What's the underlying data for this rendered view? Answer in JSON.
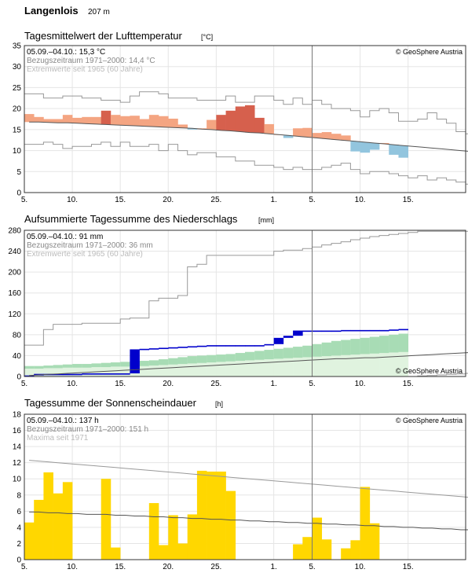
{
  "header": {
    "station": "Langenlois",
    "altitude": "207 m"
  },
  "x_ticks": [
    "5.",
    "10.",
    "15.",
    "20.",
    "25.",
    "1.",
    "5.",
    "10.",
    "15."
  ],
  "colors": {
    "warm": "#f4a582",
    "warm_dark": "#d6604d",
    "cold": "#92c5de",
    "cold_dark": "#4393c3",
    "precip": "#0000cc",
    "precip_band_dark": "#a8dcb5",
    "precip_band_light": "#e0f3df",
    "sun": "#ffd700",
    "ref_line": "#555555",
    "extreme_line": "#999999"
  },
  "chart_data": [
    {
      "type": "bar",
      "title": "Tagesmittelwert der Lufttemperatur",
      "unit": "[°C]",
      "copyright": "© GeoSphere Austria",
      "info": [
        "05.09.–04.10.: 15,3 °C",
        "Bezugszeitraum 1971–2000: 14,4 °C",
        "Extremwerte seit 1965 (60 Jahre)"
      ],
      "ylim": [
        0,
        35
      ],
      "yticks": [
        0,
        5,
        10,
        15,
        20,
        25,
        30,
        35
      ],
      "xlim": [
        0,
        46
      ],
      "current_day": 30,
      "values": [
        18.7,
        18.0,
        17.5,
        17.5,
        18.5,
        17.8,
        18.0,
        18.0,
        19.5,
        18.5,
        18.2,
        18.3,
        17.5,
        18.5,
        18.2,
        17.6,
        16.2,
        15.0,
        15.3,
        17.3,
        18.5,
        19.5,
        20.5,
        20.8,
        17.8,
        16.3,
        13.8,
        13.0,
        15.3,
        15.4,
        14.2,
        14.4,
        14.0,
        13.6,
        9.8,
        9.5,
        10.2,
        11.8,
        9.0,
        8.3
      ],
      "normal": [
        16.8,
        16.8,
        16.7,
        16.6,
        16.6,
        16.5,
        16.4,
        16.3,
        16.2,
        16.1,
        16.0,
        15.9,
        15.8,
        15.7,
        15.6,
        15.5,
        15.4,
        15.3,
        15.1,
        15.0,
        14.8,
        14.7,
        14.5,
        14.3,
        14.2,
        14.0,
        13.8,
        13.6,
        13.4,
        13.2,
        13.0,
        12.8,
        12.6,
        12.4,
        12.2,
        12.0,
        11.8,
        11.6,
        11.4,
        11.2,
        11.0,
        10.8,
        10.6,
        10.4,
        10.2,
        10.0,
        9.8
      ],
      "extreme_max": [
        23.5,
        23.5,
        22.5,
        22.5,
        23.0,
        23.0,
        22.5,
        22.5,
        22.0,
        22.0,
        21.5,
        23.0,
        24.0,
        24.0,
        23.5,
        22.5,
        22.5,
        22.5,
        22.0,
        22.0,
        22.0,
        23.0,
        21.5,
        21.5,
        23.0,
        23.0,
        22.0,
        21.0,
        22.5,
        21.0,
        22.0,
        21.0,
        20.0,
        20.0,
        19.5,
        18.0,
        19.5,
        20.0,
        19.0,
        17.0,
        17.0,
        17.5,
        19.0,
        17.5,
        16.5,
        14.5,
        14.0
      ],
      "extreme_min": [
        11.5,
        11.5,
        12.0,
        11.5,
        10.5,
        11.0,
        11.0,
        11.5,
        12.0,
        11.0,
        12.0,
        11.0,
        11.0,
        11.5,
        10.0,
        11.5,
        10.0,
        9.0,
        9.5,
        9.5,
        8.5,
        8.5,
        7.5,
        7.5,
        6.5,
        6.5,
        6.0,
        5.5,
        6.0,
        5.5,
        5.5,
        6.0,
        6.5,
        7.0,
        5.5,
        4.5,
        5.0,
        5.0,
        4.5,
        4.0,
        3.5,
        4.0,
        3.0,
        3.5,
        3.0,
        2.5,
        2.0
      ]
    },
    {
      "type": "area",
      "title": "Aufsummierte Tagessumme des Niederschlags",
      "unit": "[mm]",
      "copyright": "© GeoSphere Austria",
      "info": [
        "05.09.–04.10.: 91 mm",
        "Bezugszeitraum 1971–2000: 36 mm",
        "Extremwerte seit 1965 (60 Jahre)"
      ],
      "ylim": [
        0,
        280
      ],
      "yticks": [
        0,
        40,
        80,
        120,
        160,
        200,
        240,
        280
      ],
      "xlim": [
        0,
        46
      ],
      "current_day": 30,
      "values": [
        2,
        5,
        5,
        5,
        5,
        5,
        6,
        6,
        6,
        6,
        6,
        52,
        53,
        54,
        55,
        56,
        57,
        58,
        59,
        60,
        60,
        60,
        60,
        60,
        60,
        62,
        74,
        78,
        88,
        88,
        88,
        88,
        88,
        89,
        89,
        89,
        89,
        89,
        90,
        91
      ],
      "band_dark": [
        [
          15,
          20
        ],
        [
          15,
          20
        ],
        [
          16,
          21
        ],
        [
          16,
          22
        ],
        [
          17,
          23
        ],
        [
          17,
          24
        ],
        [
          17,
          24
        ],
        [
          18,
          25
        ],
        [
          18,
          26
        ],
        [
          19,
          27
        ],
        [
          19,
          28
        ],
        [
          20,
          29
        ],
        [
          20,
          30
        ],
        [
          21,
          31
        ],
        [
          22,
          33
        ],
        [
          23,
          35
        ],
        [
          24,
          37
        ],
        [
          25,
          39
        ],
        [
          26,
          40
        ],
        [
          27,
          41
        ],
        [
          28,
          42
        ],
        [
          29,
          43
        ],
        [
          30,
          45
        ],
        [
          31,
          47
        ],
        [
          32,
          49
        ],
        [
          33,
          51
        ],
        [
          34,
          53
        ],
        [
          35,
          55
        ],
        [
          36,
          57
        ],
        [
          37,
          59
        ],
        [
          38,
          62
        ],
        [
          39,
          65
        ],
        [
          40,
          68
        ],
        [
          41,
          70
        ],
        [
          42,
          72
        ],
        [
          43,
          74
        ],
        [
          44,
          76
        ],
        [
          45,
          78
        ],
        [
          46,
          80
        ],
        [
          47,
          82
        ]
      ],
      "normal": [
        2,
        3,
        4,
        5,
        6,
        7,
        8,
        9,
        10,
        11,
        12,
        13,
        14,
        15,
        16,
        17,
        18,
        19,
        20,
        21,
        22,
        23,
        24,
        25,
        26,
        27,
        28,
        29,
        30,
        31,
        32,
        33,
        34,
        34,
        35,
        36,
        36,
        37,
        38,
        39,
        40,
        41,
        42,
        43,
        44,
        45,
        46
      ],
      "extreme_max": [
        60,
        60,
        90,
        100,
        100,
        100,
        102,
        102,
        102,
        102,
        110,
        112,
        112,
        145,
        150,
        150,
        155,
        210,
        215,
        232,
        232,
        232,
        232,
        232,
        232,
        232,
        240,
        242,
        242,
        245,
        248,
        252,
        255,
        258,
        262,
        265,
        268,
        270,
        272,
        274,
        276,
        278,
        278,
        278,
        278,
        278,
        278
      ],
      "extreme_min": [
        0,
        0,
        0,
        0,
        0,
        0,
        0,
        0,
        0,
        0,
        0,
        0,
        0,
        0,
        0,
        0,
        0,
        0,
        0,
        0,
        0,
        0,
        0,
        0,
        0,
        0,
        0,
        0,
        0,
        0,
        0,
        0,
        0,
        0,
        0,
        0,
        0,
        0,
        0,
        0,
        0,
        1,
        2,
        3,
        4,
        5,
        6
      ]
    },
    {
      "type": "bar",
      "title": "Tagessumme der Sonnenscheindauer",
      "unit": "[h]",
      "copyright": "© GeoSphere Austria",
      "info": [
        "05.09.–04.10.: 137 h",
        "Bezugszeitraum 1971–2000: 151 h",
        "Maxima seit 1971"
      ],
      "ylim": [
        0,
        18
      ],
      "yticks": [
        0,
        2,
        4,
        6,
        8,
        10,
        12,
        14,
        16,
        18
      ],
      "xlim": [
        0,
        46
      ],
      "current_day": 30,
      "values": [
        4.6,
        7.4,
        10.8,
        8.2,
        9.6,
        0.0,
        0.0,
        0.0,
        10.0,
        1.5,
        0.0,
        0.0,
        0.0,
        7.0,
        1.8,
        5.5,
        2.0,
        5.6,
        11.0,
        10.9,
        10.9,
        8.5,
        0.0,
        0.0,
        0.0,
        0.0,
        0.0,
        0.0,
        1.9,
        2.8,
        5.2,
        2.5,
        0.0,
        1.4,
        2.4,
        9.0,
        4.5,
        0.0,
        0.0,
        0.0
      ],
      "normal_max": [
        12.3,
        12.2,
        12.1,
        12.0,
        11.9,
        11.8,
        11.7,
        11.6,
        11.5,
        11.4,
        11.3,
        11.2,
        11.1,
        11.0,
        10.9,
        10.8,
        10.7,
        10.6,
        10.5,
        10.4,
        10.3,
        10.2,
        10.1,
        10.0,
        9.9,
        9.8,
        9.7,
        9.6,
        9.5,
        9.4,
        9.3,
        9.2,
        9.1,
        9.0,
        8.9,
        8.8,
        8.7,
        8.6,
        8.5,
        8.4,
        8.3,
        8.2,
        8.1,
        8.0,
        7.9,
        7.8,
        7.7
      ],
      "normal": [
        5.9,
        5.9,
        5.8,
        5.8,
        5.7,
        5.7,
        5.6,
        5.6,
        5.6,
        5.5,
        5.5,
        5.4,
        5.4,
        5.3,
        5.3,
        5.2,
        5.2,
        5.1,
        5.1,
        5.0,
        5.0,
        4.9,
        4.9,
        4.8,
        4.8,
        4.7,
        4.7,
        4.6,
        4.6,
        4.5,
        4.5,
        4.4,
        4.4,
        4.3,
        4.3,
        4.2,
        4.2,
        4.1,
        4.1,
        4.0,
        4.0,
        3.9,
        3.9,
        3.8,
        3.8,
        3.7,
        3.7
      ]
    }
  ]
}
